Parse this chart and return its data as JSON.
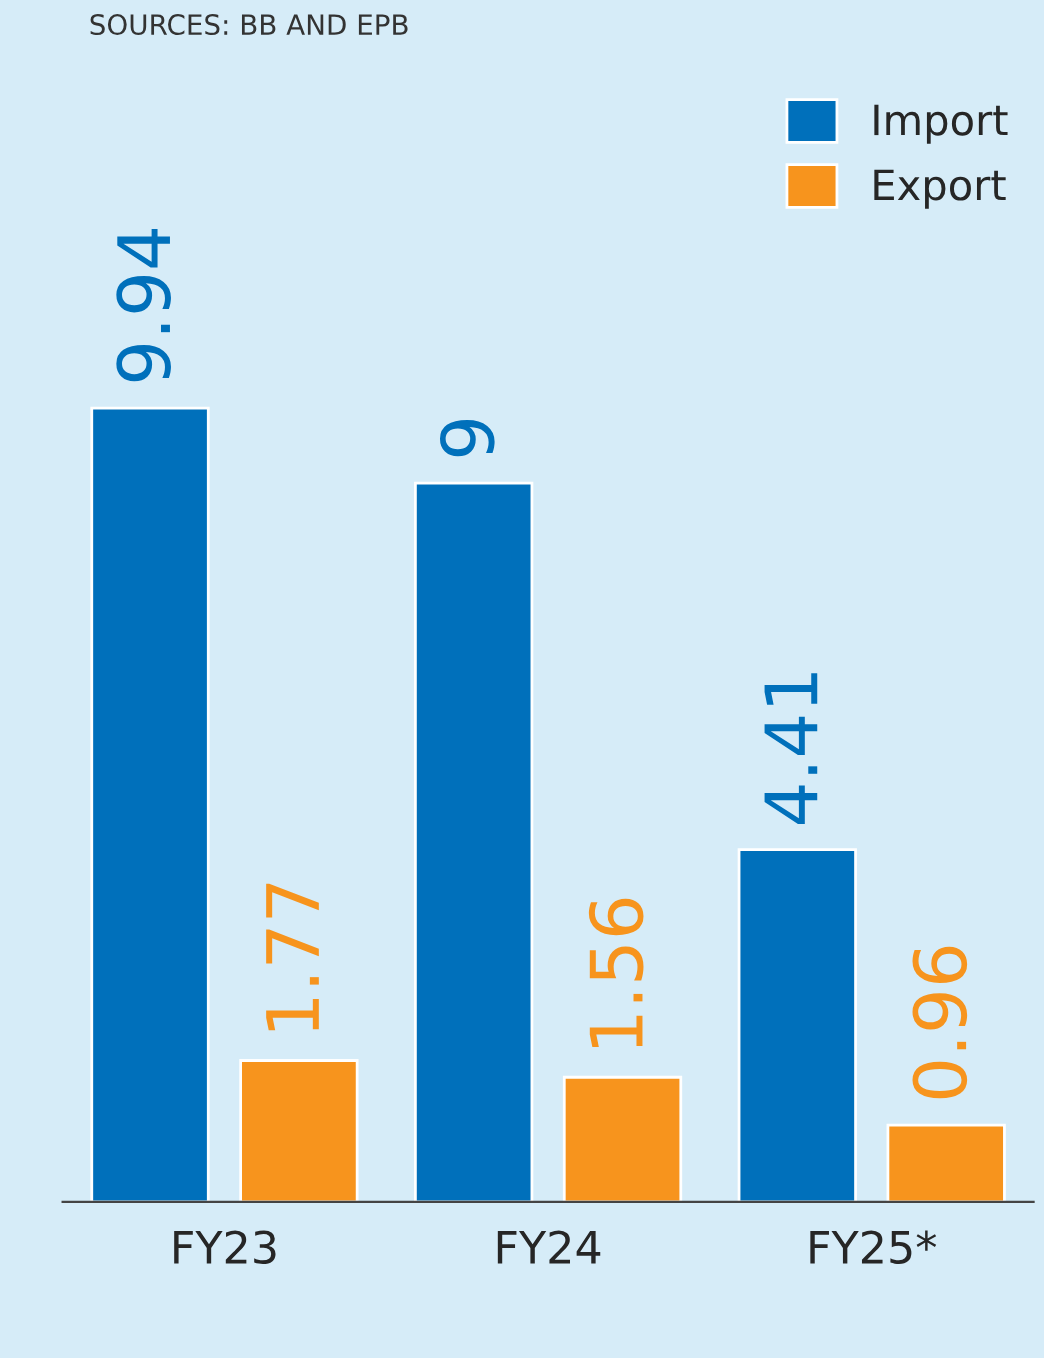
{
  "chart_data": {
    "type": "bar",
    "categories": [
      "FY23",
      "FY24",
      "FY25*"
    ],
    "series": [
      {
        "name": "Import",
        "color": "#0070bb",
        "values": [
          9.94,
          9,
          4.41
        ]
      },
      {
        "name": "Export",
        "color": "#f7941d",
        "values": [
          1.77,
          1.56,
          0.96
        ]
      }
    ],
    "data_labels": true,
    "legend": "top right",
    "grid": false,
    "annotations": [
      "SOURCES: BB AND EPB"
    ]
  }
}
